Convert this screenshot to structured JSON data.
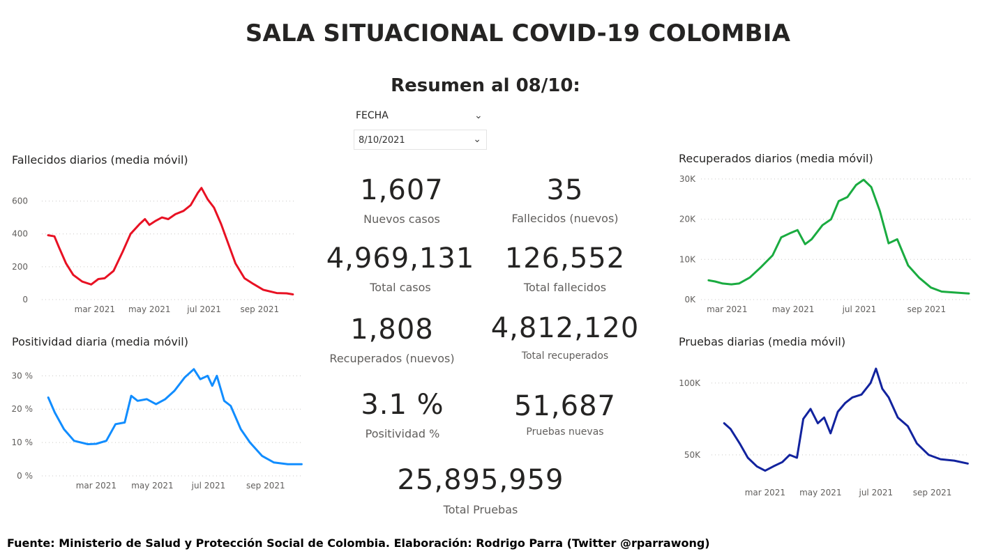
{
  "header": {
    "title": "SALA SITUACIONAL COVID-19 COLOMBIA",
    "subtitle": "Resumen al 08/10:"
  },
  "slicer": {
    "label": "FECHA",
    "value": "8/10/2021",
    "icon": "chevron-down-icon"
  },
  "kpis": [
    {
      "value": "1,607",
      "label": "Nuevos casos"
    },
    {
      "value": "35",
      "label": "Fallecidos (nuevos)"
    },
    {
      "value": "4,969,131",
      "label": "Total casos"
    },
    {
      "value": "126,552",
      "label": "Total fallecidos"
    },
    {
      "value": "1,808",
      "label": "Recuperados (nuevos)"
    },
    {
      "value": "4,812,120",
      "label": "Total recuperados"
    },
    {
      "value": "3.1 %",
      "label": "Positividad %"
    },
    {
      "value": "51,687",
      "label": "Pruebas nuevas"
    },
    {
      "value": "25,895,959",
      "label": "Total Pruebas"
    }
  ],
  "footer": "Fuente: Ministerio de Salud y Protección Social de Colombia. Elaboración: Rodrigo Parra (Twitter @rparrawong)",
  "chart_data": [
    {
      "id": "fallecidos",
      "type": "line",
      "title": "Fallecidos diarios (media móvil)",
      "color": "#e81123",
      "xlabel": "",
      "ylabel": "",
      "grid": true,
      "y_ticks": [
        0,
        200,
        400,
        600
      ],
      "y_tick_labels": [
        "0",
        "200",
        "400",
        "600"
      ],
      "ylim": [
        0,
        700
      ],
      "x_tick_labels": [
        "mar 2021",
        "may 2021",
        "jul 2021",
        "sep 2021"
      ],
      "x_ticks": [
        "2021-03-01",
        "2021-05-01",
        "2021-07-01",
        "2021-09-01"
      ],
      "xlim": [
        "2021-01-01",
        "2021-10-12"
      ],
      "x": [
        "2021-01-08",
        "2021-01-15",
        "2021-01-20",
        "2021-01-28",
        "2021-02-05",
        "2021-02-15",
        "2021-02-25",
        "2021-03-05",
        "2021-03-12",
        "2021-03-22",
        "2021-04-01",
        "2021-04-10",
        "2021-04-20",
        "2021-04-26",
        "2021-05-01",
        "2021-05-08",
        "2021-05-15",
        "2021-05-22",
        "2021-05-30",
        "2021-06-08",
        "2021-06-16",
        "2021-06-24",
        "2021-06-28",
        "2021-07-05",
        "2021-07-12",
        "2021-07-20",
        "2021-07-28",
        "2021-08-05",
        "2021-08-15",
        "2021-08-25",
        "2021-09-05",
        "2021-09-20",
        "2021-10-01",
        "2021-10-08"
      ],
      "values": [
        392,
        385,
        320,
        220,
        150,
        110,
        92,
        125,
        130,
        175,
        290,
        400,
        460,
        490,
        455,
        480,
        500,
        490,
        520,
        540,
        575,
        650,
        680,
        610,
        560,
        460,
        340,
        220,
        130,
        95,
        60,
        40,
        38,
        32
      ]
    },
    {
      "id": "positividad",
      "type": "line",
      "title": "Positividad diaria (media móvil)",
      "color": "#118dff",
      "grid": true,
      "y_ticks": [
        0,
        10,
        20,
        30
      ],
      "y_tick_labels": [
        "0 %",
        "10 %",
        "20 %",
        "30 %"
      ],
      "ylim": [
        0,
        33
      ],
      "x_tick_labels": [
        "mar 2021",
        "may 2021",
        "jul 2021",
        "sep 2021"
      ],
      "x_ticks": [
        "2021-03-01",
        "2021-05-01",
        "2021-07-01",
        "2021-09-01"
      ],
      "xlim": [
        "2021-01-01",
        "2021-10-12"
      ],
      "x": [
        "2021-01-08",
        "2021-01-15",
        "2021-01-25",
        "2021-02-05",
        "2021-02-20",
        "2021-03-01",
        "2021-03-12",
        "2021-03-22",
        "2021-04-01",
        "2021-04-08",
        "2021-04-15",
        "2021-04-25",
        "2021-05-05",
        "2021-05-15",
        "2021-05-25",
        "2021-06-05",
        "2021-06-15",
        "2021-06-22",
        "2021-06-30",
        "2021-07-05",
        "2021-07-10",
        "2021-07-18",
        "2021-07-25",
        "2021-08-05",
        "2021-08-15",
        "2021-08-28",
        "2021-09-10",
        "2021-09-25",
        "2021-10-10"
      ],
      "values": [
        23.5,
        19,
        14,
        10.5,
        9.5,
        9.6,
        10.5,
        15.5,
        16,
        24,
        22.5,
        23,
        21.5,
        23,
        25.5,
        29.5,
        32,
        29,
        30,
        27,
        30,
        22.5,
        21,
        14,
        10,
        6,
        4,
        3.5,
        3.5
      ]
    },
    {
      "id": "recuperados",
      "type": "line",
      "title": "Recuperados diarios (media móvil)",
      "color": "#1aab40",
      "grid": true,
      "y_ticks": [
        0,
        10000,
        20000,
        30000
      ],
      "y_tick_labels": [
        "0K",
        "10K",
        "20K",
        "30K"
      ],
      "ylim": [
        0,
        30500
      ],
      "x_tick_labels": [
        "mar 2021",
        "may 2021",
        "jul 2021",
        "sep 2021"
      ],
      "x_ticks": [
        "2021-03-01",
        "2021-05-01",
        "2021-07-01",
        "2021-09-01"
      ],
      "xlim": [
        "2021-02-05",
        "2021-10-12"
      ],
      "x": [
        "2021-02-12",
        "2021-02-18",
        "2021-02-25",
        "2021-03-05",
        "2021-03-12",
        "2021-03-22",
        "2021-04-01",
        "2021-04-12",
        "2021-04-20",
        "2021-04-28",
        "2021-05-05",
        "2021-05-12",
        "2021-05-18",
        "2021-05-28",
        "2021-06-05",
        "2021-06-12",
        "2021-06-20",
        "2021-06-28",
        "2021-07-05",
        "2021-07-12",
        "2021-07-20",
        "2021-07-28",
        "2021-08-05",
        "2021-08-15",
        "2021-08-25",
        "2021-09-05",
        "2021-09-15",
        "2021-09-25",
        "2021-10-10"
      ],
      "values": [
        4800,
        4500,
        4000,
        3800,
        4000,
        5500,
        8000,
        11000,
        15500,
        16500,
        17300,
        13800,
        15000,
        18500,
        20000,
        24500,
        25500,
        28500,
        29800,
        28000,
        22000,
        14000,
        15000,
        8500,
        5500,
        3000,
        2000,
        1800,
        1500
      ]
    },
    {
      "id": "pruebas",
      "type": "line",
      "title": "Pruebas diarias (media móvil)",
      "color": "#12239e",
      "grid": true,
      "y_ticks": [
        50000,
        100000
      ],
      "y_tick_labels": [
        "50K",
        "100K"
      ],
      "ylim": [
        32000,
        112000
      ],
      "x_tick_labels": [
        "mar 2021",
        "may 2021",
        "jul 2021",
        "sep 2021"
      ],
      "x_ticks": [
        "2021-03-01",
        "2021-05-01",
        "2021-07-01",
        "2021-09-01"
      ],
      "xlim": [
        "2021-01-01",
        "2021-10-12"
      ],
      "x": [
        "2021-01-15",
        "2021-01-22",
        "2021-02-01",
        "2021-02-10",
        "2021-02-20",
        "2021-03-01",
        "2021-03-10",
        "2021-03-20",
        "2021-03-28",
        "2021-04-05",
        "2021-04-12",
        "2021-04-20",
        "2021-04-28",
        "2021-05-05",
        "2021-05-12",
        "2021-05-20",
        "2021-05-28",
        "2021-06-05",
        "2021-06-15",
        "2021-06-25",
        "2021-07-01",
        "2021-07-08",
        "2021-07-15",
        "2021-07-25",
        "2021-08-05",
        "2021-08-15",
        "2021-08-28",
        "2021-09-10",
        "2021-09-25",
        "2021-10-10"
      ],
      "values": [
        72000,
        68000,
        58000,
        48000,
        42000,
        39000,
        42000,
        45000,
        50000,
        48000,
        75000,
        82000,
        72000,
        76000,
        65000,
        80000,
        86000,
        90000,
        92000,
        100000,
        110000,
        96000,
        90000,
        76000,
        70000,
        58000,
        50000,
        47000,
        46000,
        44000
      ]
    }
  ]
}
